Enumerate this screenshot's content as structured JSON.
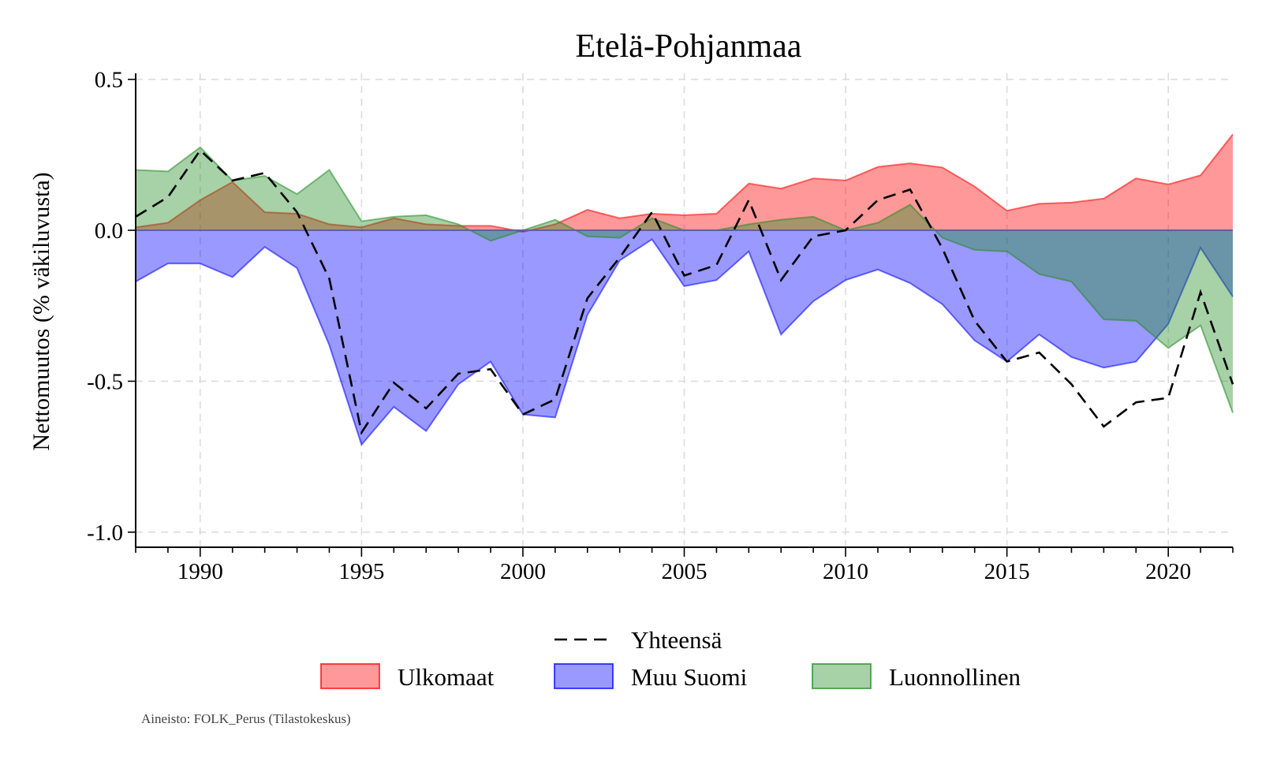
{
  "chart_data": {
    "type": "area",
    "title": "Etelä-Pohjanmaa",
    "xlabel": "",
    "ylabel": "Nettomuutos (% väkiluvusta)",
    "xlim": [
      1988,
      2022
    ],
    "ylim": [
      -1.05,
      0.52
    ],
    "xticks": [
      1990,
      1995,
      2000,
      2005,
      2010,
      2015,
      2020
    ],
    "yticks": [
      0.5,
      0.0,
      -0.5,
      -1.0
    ],
    "ytick_labels": [
      "0.5",
      "0.0",
      "-0.5",
      "-1.0"
    ],
    "grid": true,
    "x": [
      1988,
      1989,
      1990,
      1991,
      1992,
      1993,
      1994,
      1995,
      1996,
      1997,
      1998,
      1999,
      2000,
      2001,
      2002,
      2003,
      2004,
      2005,
      2006,
      2007,
      2008,
      2009,
      2010,
      2011,
      2012,
      2013,
      2014,
      2015,
      2016,
      2017,
      2018,
      2019,
      2020,
      2021,
      2022
    ],
    "series": [
      {
        "name": "Ulkomaat",
        "type": "area",
        "color": "#ff0000",
        "values": [
          0.01,
          0.025,
          0.1,
          0.16,
          0.06,
          0.055,
          0.02,
          0.01,
          0.04,
          0.02,
          0.015,
          0.015,
          -0.005,
          0.02,
          0.068,
          0.04,
          0.055,
          0.05,
          0.055,
          0.155,
          0.138,
          0.172,
          0.165,
          0.21,
          0.222,
          0.208,
          0.145,
          0.065,
          0.088,
          0.092,
          0.105,
          0.172,
          0.152,
          0.182,
          0.318
        ]
      },
      {
        "name": "Muu Suomi",
        "type": "area",
        "color": "#0000ff",
        "values": [
          -0.17,
          -0.11,
          -0.11,
          -0.155,
          -0.055,
          -0.125,
          -0.38,
          -0.71,
          -0.585,
          -0.665,
          -0.51,
          -0.435,
          -0.61,
          -0.62,
          -0.28,
          -0.1,
          -0.03,
          -0.185,
          -0.165,
          -0.07,
          -0.345,
          -0.235,
          -0.165,
          -0.13,
          -0.175,
          -0.245,
          -0.365,
          -0.435,
          -0.345,
          -0.42,
          -0.455,
          -0.435,
          -0.31,
          -0.058,
          -0.22
        ]
      },
      {
        "name": "Luonnollinen",
        "type": "area",
        "color": "#228b22",
        "values": [
          0.2,
          0.195,
          0.275,
          0.165,
          0.18,
          0.12,
          0.2,
          0.03,
          0.045,
          0.05,
          0.02,
          -0.035,
          0.0,
          0.035,
          -0.02,
          -0.025,
          0.04,
          0.0,
          0.0,
          0.02,
          0.035,
          0.045,
          0.0,
          0.025,
          0.085,
          -0.025,
          -0.065,
          -0.07,
          -0.145,
          -0.17,
          -0.295,
          -0.3,
          -0.39,
          -0.315,
          -0.605
        ]
      },
      {
        "name": "Yhteensä",
        "type": "line",
        "dashed": true,
        "color": "#000000",
        "values": [
          0.045,
          0.11,
          0.265,
          0.165,
          0.19,
          0.06,
          -0.16,
          -0.67,
          -0.505,
          -0.59,
          -0.475,
          -0.46,
          -0.61,
          -0.56,
          -0.225,
          -0.09,
          0.06,
          -0.15,
          -0.115,
          0.1,
          -0.165,
          -0.02,
          0.0,
          0.1,
          0.135,
          -0.06,
          -0.3,
          -0.435,
          -0.405,
          -0.51,
          -0.65,
          -0.57,
          -0.555,
          -0.205,
          -0.51
        ]
      }
    ],
    "legend": {
      "position": "bottom",
      "entries": [
        "Yhteensä",
        "Ulkomaat",
        "Muu Suomi",
        "Luonnollinen"
      ]
    },
    "source_note": "Aineisto: FOLK_Perus (Tilastokeskus)"
  }
}
